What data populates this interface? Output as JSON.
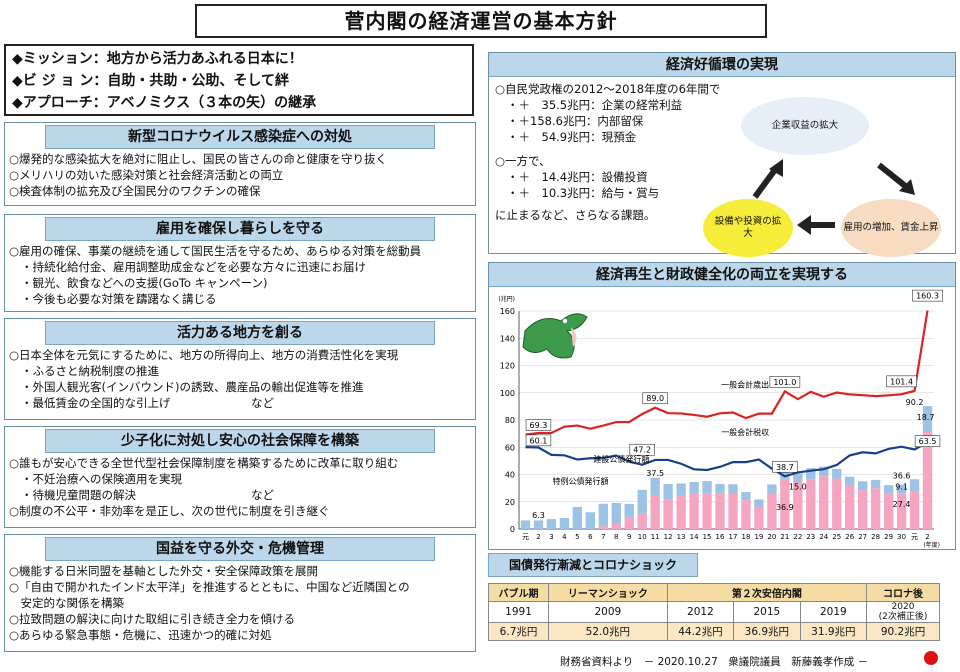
{
  "title": "菅内閣の経済運営の基本方針",
  "mission": {
    "line1": "◆ミッション：地方から活力あふれる日本に！",
    "line2": "◆ビ ジ ョ ン：自助・共助・公助、そして絆",
    "line3": "◆アプローチ：アベノミクス（３本の矢）の継承"
  },
  "sections": [
    {
      "head": "新型コロナウイルス感染症への対処",
      "lines": [
        "○爆発的な感染拡大を絶対に阻止し、国民の皆さんの命と健康を守り抜く",
        "○メリハリの効いた感染対策と社会経済活動との両立",
        "○検査体制の拡充及び全国民分のワクチンの確保"
      ]
    },
    {
      "head": "雇用を確保し暮らしを守る",
      "lines": [
        "○雇用の確保、事業の継続を通して国民生活を守るため、あらゆる対策を総動員",
        "・持続化給付金、雇用調整助成金などを必要な方々に迅速にお届け",
        "・観光、飲食などへの支援(GoTo キャンペーン)",
        "・今後も必要な対策を躊躇なく講じる"
      ]
    },
    {
      "head": "活力ある地方を創る",
      "lines": [
        "○日本全体を元気にするために、地方の所得向上、地方の消費活性化を実現",
        "・ふるさと納税制度の推進",
        "・外国人観光客(インバウンド)の誘致、農産品の輸出促進等を推進",
        "・最低賃金の全国的な引上げ　　　　　　　など"
      ]
    },
    {
      "head": "少子化に対処し安心の社会保障を構築",
      "lines": [
        "○誰もが安心できる全世代型社会保障制度を構築するために改革に取り組む",
        "・不妊治療への保険適用を実現",
        "・待機児童問題の解決　　　　　　　　　　など",
        "○制度の不公平・非効率を是正し、次の世代に制度を引き継ぐ"
      ]
    },
    {
      "head": "国益を守る外交・危機管理",
      "lines": [
        "○機能する日米同盟を基軸とした外交・安全保障政策を展開",
        "○「自由で開かれたインド太平洋」を推進するとともに、中国など近隣国との",
        "　安定的な関係を構築",
        "○拉致問題の解決に向けた取組に引き続き全力を傾ける",
        "○あらゆる緊急事態・危機に、迅速かつ的確に対処"
      ]
    }
  ],
  "eco": {
    "head": "経済好循環の実現",
    "l1": "○自民党政権の2012～2018年度の6年間で",
    "l2": "・＋　35.5兆円：企業の経常利益",
    "l3": "・＋158.6兆円：内部留保",
    "l4": "・＋　54.9兆円：現預金",
    "l5": "○一方で、",
    "l6": "・＋　14.4兆円：設備投資",
    "l7": "・＋　10.3兆円：給与・賞与",
    "l8": "に止まるなど、さらなる課題。",
    "b1": "企業収益の拡大",
    "b2": "雇用の増加、賃金上昇",
    "b3": "設備や投資の拡大"
  },
  "chart_head": "経済再生と財政健全化の両立を実現する",
  "chart_data": {
    "type": "bar",
    "unit": "(兆円)",
    "xunit": "(年度)",
    "categories": [
      "元",
      "2",
      "3",
      "4",
      "5",
      "6",
      "7",
      "8",
      "9",
      "10",
      "11",
      "12",
      "13",
      "14",
      "15",
      "16",
      "17",
      "18",
      "19",
      "20",
      "21",
      "22",
      "23",
      "24",
      "25",
      "26",
      "27",
      "28",
      "29",
      "30",
      "元",
      "2"
    ],
    "ylim": [
      0,
      160
    ],
    "yticks": [
      0,
      20,
      40,
      60,
      80,
      100,
      120,
      140,
      160
    ],
    "series": [
      {
        "name": "一般会計歳出",
        "values": [
          69.3,
          70.5,
          70.5,
          75.1,
          75.9,
          73.6,
          75.9,
          78.5,
          78.5,
          84.4,
          89.0,
          85.0,
          84.8,
          83.7,
          82.4,
          84.9,
          85.5,
          81.4,
          84.7,
          84.7,
          101.0,
          95.3,
          100.7,
          97.1,
          100.2,
          98.8,
          98.2,
          97.5,
          98.1,
          98.9,
          101.4,
          160.3
        ]
      },
      {
        "name": "一般会計税収",
        "values": [
          60.1,
          59.8,
          54.4,
          54.1,
          51.0,
          51.9,
          52.1,
          53.9,
          49.4,
          47.2,
          50.7,
          50.7,
          47.9,
          43.8,
          43.3,
          45.6,
          49.1,
          49.1,
          51.0,
          44.3,
          38.7,
          41.5,
          42.8,
          43.9,
          47.0,
          54.0,
          56.3,
          55.5,
          58.8,
          60.4,
          58.4,
          63.5
        ]
      },
      {
        "name": "建設公債発行額",
        "values": [
          6.3,
          6.3,
          7.3,
          8.1,
          16.2,
          12.3,
          16.4,
          15.0,
          9.9,
          17.0,
          13.2,
          11.1,
          9.1,
          8.7,
          8.7,
          6.5,
          7.1,
          5.9,
          5.2,
          7.0,
          7.8,
          6.4,
          8.2,
          7.0,
          7.1,
          6.5,
          6.5,
          6.2,
          6.0,
          6.2,
          9.1,
          18.7
        ]
      },
      {
        "name": "特例公債発行額",
        "values": [
          0,
          0,
          0,
          0,
          0,
          0,
          2.1,
          4.1,
          8.5,
          11.7,
          24.3,
          21.9,
          24.3,
          25.8,
          26.5,
          26.6,
          25.7,
          21.2,
          16.5,
          25.7,
          36.9,
          34.5,
          36.5,
          38.8,
          37.0,
          31.9,
          28.5,
          29.9,
          26.2,
          26.3,
          27.4,
          71.5
        ]
      }
    ],
    "labels": {
      "v69": "69.3",
      "v60": "60.1",
      "v63": "6.3",
      "v89": "89.0",
      "v472": "47.2",
      "v375": "37.5",
      "v101a": "101.0",
      "v150": "15.0",
      "v387": "38.7",
      "v369": "36.9",
      "v1014": "101.4",
      "v1603": "160.3",
      "v902": "90.2",
      "v187": "18.7",
      "v635": "63.5",
      "v366": "36.6",
      "v91": "9.1",
      "v274": "27.4"
    }
  },
  "kokusai": {
    "title": "国債発行漸減とコロナショック",
    "h1": "バブル期",
    "h2": "リーマンショック",
    "h3": "第２次安倍内閣",
    "h4": "コロナ後",
    "y1": "1991",
    "y2": "2009",
    "y3": "2012",
    "y4": "2015",
    "y5": "2019",
    "y6": "2020",
    "y6b": "(2次補正後)",
    "v1": "6.7兆円",
    "v2": "52.0兆円",
    "v3": "44.2兆円",
    "v4": "36.9兆円",
    "v5": "31.9兆円",
    "v6": "90.2兆円"
  },
  "footer": "財務省資料より　－ 2020.10.27　衆議院議員　新藤義孝作成 －"
}
